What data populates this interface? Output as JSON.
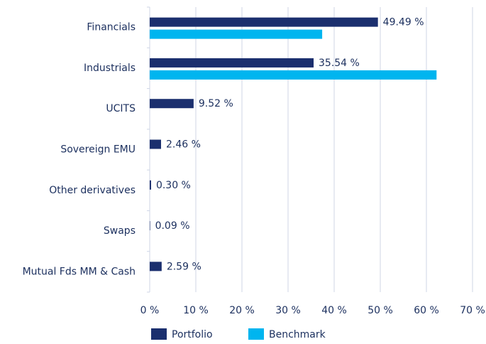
{
  "chart_data": {
    "type": "bar",
    "orientation": "horizontal",
    "categories": [
      "Financials",
      "Industrials",
      "UCITS",
      "Sovereign EMU",
      "Other derivatives",
      "Swaps",
      "Mutual Fds MM & Cash"
    ],
    "series": [
      {
        "name": "Portfolio",
        "color": "#1b2f6e",
        "values": [
          49.49,
          35.54,
          9.52,
          2.46,
          0.3,
          0.09,
          2.59
        ],
        "value_labels": [
          "49.49 %",
          "35.54 %",
          "9.52 %",
          "2.46 %",
          "0.30 %",
          "0.09 %",
          "2.59 %"
        ]
      },
      {
        "name": "Benchmark",
        "color": "#00b5ef",
        "values": [
          37.4,
          62.2,
          null,
          null,
          null,
          null,
          null
        ]
      }
    ],
    "xlim": [
      0,
      70
    ],
    "xticks": [
      {
        "value": 0,
        "label": "0 %"
      },
      {
        "value": 10,
        "label": "10 %"
      },
      {
        "value": 20,
        "label": "20 %"
      },
      {
        "value": 30,
        "label": "30 %"
      },
      {
        "value": 40,
        "label": "40 %"
      },
      {
        "value": 50,
        "label": "50 %"
      },
      {
        "value": 60,
        "label": "60 %"
      },
      {
        "value": 70,
        "label": "70 %"
      }
    ],
    "grid": true,
    "legend": "bottom"
  }
}
